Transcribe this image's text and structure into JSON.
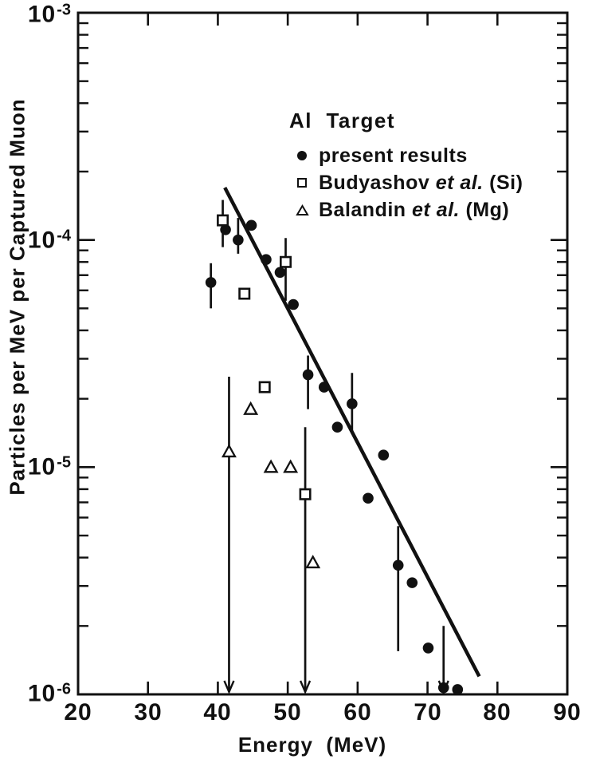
{
  "figure": {
    "y_axis_title": "Particles per MeV per Captured Muon",
    "x_axis_title": "Energy  (MeV)",
    "y_tick_base": "10",
    "y_tick_exponents": [
      "-3",
      "-4",
      "-5",
      "-6"
    ],
    "x_tick_labels": [
      "20",
      "30",
      "40",
      "50",
      "60",
      "70",
      "80",
      "90"
    ],
    "legend": {
      "title": "Al  Target",
      "items": [
        {
          "symbol": "filled-circle",
          "label": "present results"
        },
        {
          "symbol": "open-square",
          "name": "Budyashov ",
          "etal": "et al.",
          "suffix": " (Si)"
        },
        {
          "symbol": "open-triangle",
          "name": "Balandin ",
          "etal": "et al.",
          "suffix": " (Mg)"
        }
      ]
    }
  },
  "chart_data": {
    "type": "scatter",
    "title": "Al Target",
    "xlabel": "Energy (MeV)",
    "ylabel": "Particles per MeV per Captured Muon",
    "xlim": [
      20,
      90
    ],
    "ylim": [
      1e-06,
      0.001
    ],
    "yscale": "log",
    "grid": false,
    "legend_position": "upper-right-inside",
    "x_ticks": [
      20,
      30,
      40,
      50,
      60,
      70,
      80,
      90
    ],
    "y_ticks": [
      0.001,
      0.0001,
      1e-05,
      1e-06
    ],
    "series": [
      {
        "name": "present results",
        "marker": "filled-circle",
        "points": [
          {
            "x": 39.0,
            "y": 6.5e-05,
            "y_hi": 7.9e-05,
            "y_lo": 5e-05
          },
          {
            "x": 41.1,
            "y": 0.000111
          },
          {
            "x": 42.9,
            "y": 0.0001,
            "y_hi": 0.000125,
            "y_lo": 8.7e-05
          },
          {
            "x": 44.8,
            "y": 0.000116
          },
          {
            "x": 46.9,
            "y": 8.2e-05
          },
          {
            "x": 48.9,
            "y": 7.2e-05
          },
          {
            "x": 50.8,
            "y": 5.2e-05
          },
          {
            "x": 52.9,
            "y": 2.55e-05,
            "y_hi": 3.1e-05,
            "y_lo": 1.8e-05
          },
          {
            "x": 55.2,
            "y": 2.25e-05
          },
          {
            "x": 57.1,
            "y": 1.5e-05
          },
          {
            "x": 59.2,
            "y": 1.9e-05,
            "y_hi": 2.6e-05,
            "y_lo": 1.4e-05
          },
          {
            "x": 61.5,
            "y": 7.3e-06
          },
          {
            "x": 63.7,
            "y": 1.13e-05
          },
          {
            "x": 65.8,
            "y": 3.7e-06,
            "y_hi": 5.5e-06,
            "y_lo": 1.55e-06
          },
          {
            "x": 67.8,
            "y": 3.1e-06
          },
          {
            "x": 70.1,
            "y": 1.6e-06
          },
          {
            "x": 72.3,
            "y": 1.07e-06,
            "y_hi": 2e-06,
            "arrow_down": true
          },
          {
            "x": 74.3,
            "y": 1.05e-06
          }
        ]
      },
      {
        "name": "Budyashov et al. (Si)",
        "marker": "open-square",
        "points": [
          {
            "x": 40.7,
            "y": 0.000122,
            "y_hi": 0.00015,
            "y_lo": 9.3e-05
          },
          {
            "x": 43.8,
            "y": 5.8e-05
          },
          {
            "x": 46.7,
            "y": 2.25e-05
          },
          {
            "x": 49.7,
            "y": 8e-05,
            "y_hi": 0.000102,
            "y_lo": 5.4e-05
          },
          {
            "x": 52.5,
            "y": 7.6e-06,
            "y_hi": 1.5e-05,
            "arrow_down": true
          }
        ]
      },
      {
        "name": "Balandin et al. (Mg)",
        "marker": "open-triangle",
        "points": [
          {
            "x": 41.6,
            "y": 1.17e-05,
            "y_hi": 2.5e-05,
            "arrow_down": true
          },
          {
            "x": 44.7,
            "y": 1.8e-05
          },
          {
            "x": 47.6,
            "y": 1e-05
          },
          {
            "x": 50.4,
            "y": 1e-05
          },
          {
            "x": 53.6,
            "y": 3.8e-06
          }
        ]
      }
    ],
    "fit_line": {
      "x1": 41.0,
      "y1": 0.00017,
      "x2": 77.4,
      "y2": 1.2e-06
    }
  }
}
